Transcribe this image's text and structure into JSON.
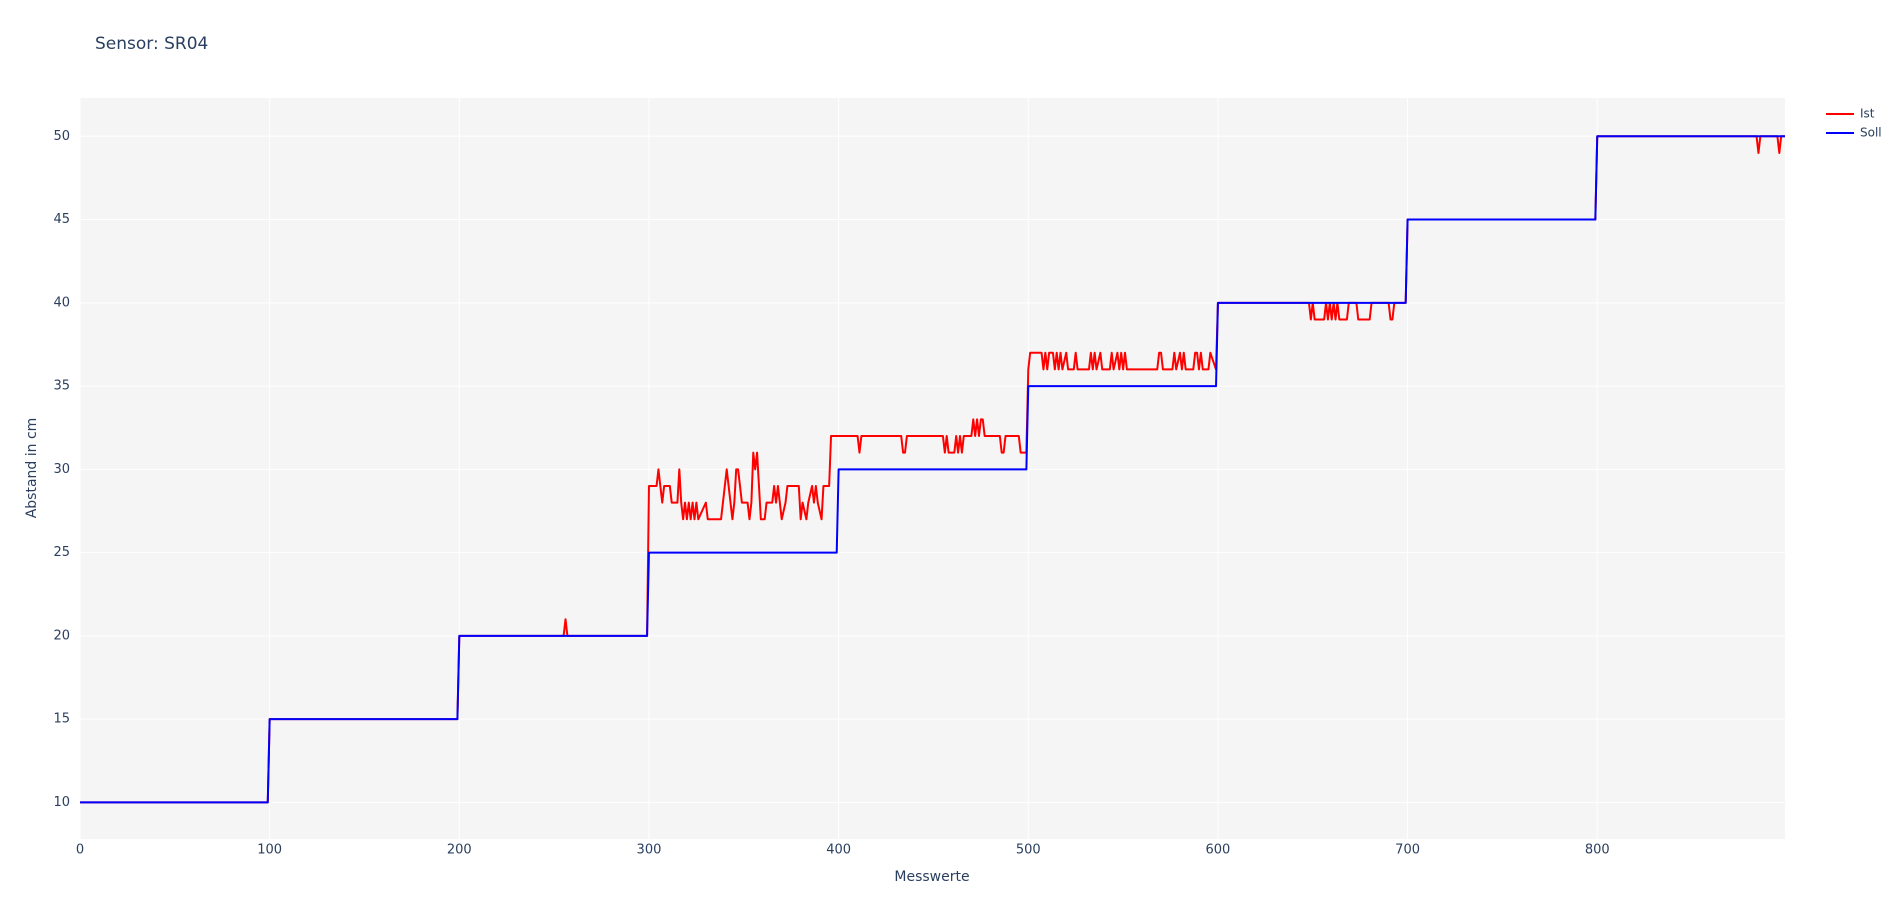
{
  "chart_data": {
    "type": "line",
    "title": "Sensor: SR04",
    "x_label": "Messwerte",
    "y_label": "Abstand in cm",
    "xlim": [
      0,
      899
    ],
    "ylim": [
      7.8,
      52.3
    ],
    "xticks": [
      0,
      100,
      200,
      300,
      400,
      500,
      600,
      700,
      800
    ],
    "yticks": [
      10,
      15,
      20,
      25,
      30,
      35,
      40,
      45,
      50
    ],
    "grid": true,
    "legend": "top-right",
    "series": [
      {
        "name": "Ist",
        "color": "#ff0000",
        "x": [
          0,
          99,
          100,
          199,
          200,
          255,
          256,
          257,
          299,
          300,
          304,
          305,
          306,
          307,
          308,
          311,
          312,
          315,
          316,
          317,
          318,
          319,
          320,
          321,
          322,
          323,
          324,
          325,
          326,
          330,
          331,
          338,
          340,
          341,
          342,
          343,
          344,
          345,
          346,
          347,
          348,
          349,
          352,
          353,
          354,
          355,
          356,
          357,
          358,
          359,
          361,
          362,
          365,
          366,
          367,
          368,
          369,
          370,
          372,
          373,
          379,
          380,
          381,
          383,
          384,
          386,
          387,
          388,
          389,
          391,
          392,
          395,
          396,
          410,
          411,
          412,
          433,
          434,
          435,
          436,
          455,
          456,
          457,
          458,
          461,
          462,
          463,
          464,
          465,
          466,
          470,
          471,
          472,
          473,
          474,
          475,
          476,
          477,
          485,
          486,
          487,
          488,
          495,
          496,
          499,
          500,
          501,
          507,
          508,
          509,
          510,
          511,
          513,
          514,
          515,
          516,
          517,
          518,
          520,
          521,
          524,
          525,
          526,
          532,
          533,
          534,
          535,
          536,
          538,
          539,
          543,
          544,
          545,
          547,
          548,
          549,
          550,
          551,
          552,
          568,
          569,
          570,
          571,
          576,
          577,
          578,
          580,
          581,
          582,
          583,
          587,
          588,
          589,
          590,
          591,
          592,
          595,
          596,
          599,
          600,
          648,
          649,
          650,
          651,
          656,
          657,
          658,
          659,
          660,
          661,
          662,
          663,
          664,
          668,
          669,
          673,
          674,
          680,
          681,
          690,
          691,
          692,
          693,
          699,
          700,
          799,
          800,
          884,
          885,
          886,
          895,
          896,
          897,
          899
        ],
        "values": [
          10,
          10,
          15,
          15,
          20,
          20,
          21,
          20,
          20,
          29,
          29,
          30,
          29,
          28,
          29,
          29,
          28,
          28,
          30,
          28,
          27,
          28,
          27,
          28,
          27,
          28,
          27,
          28,
          27,
          28,
          27,
          27,
          29,
          30,
          29,
          28,
          27,
          28,
          30,
          30,
          29,
          28,
          28,
          27,
          28,
          31,
          30,
          31,
          29,
          27,
          27,
          28,
          28,
          29,
          28,
          29,
          28,
          27,
          28,
          29,
          29,
          27,
          28,
          27,
          28,
          29,
          28,
          29,
          28,
          27,
          29,
          29,
          32,
          32,
          31,
          32,
          32,
          31,
          31,
          32,
          32,
          31,
          32,
          31,
          31,
          32,
          31,
          32,
          31,
          32,
          32,
          33,
          32,
          33,
          32,
          33,
          33,
          32,
          32,
          31,
          31,
          32,
          32,
          31,
          31,
          36,
          37,
          37,
          36,
          37,
          36,
          37,
          37,
          36,
          37,
          36,
          37,
          36,
          37,
          36,
          36,
          37,
          36,
          36,
          37,
          36,
          37,
          36,
          37,
          36,
          36,
          37,
          36,
          37,
          36,
          37,
          36,
          37,
          36,
          36,
          37,
          37,
          36,
          36,
          37,
          36,
          37,
          36,
          37,
          36,
          36,
          37,
          37,
          36,
          37,
          36,
          36,
          37,
          36,
          40,
          40,
          39,
          40,
          39,
          39,
          40,
          39,
          40,
          39,
          40,
          39,
          40,
          39,
          39,
          40,
          40,
          39,
          39,
          40,
          40,
          39,
          39,
          40,
          40,
          45,
          45,
          50,
          50,
          49,
          50,
          50,
          49,
          50,
          50
        ]
      },
      {
        "name": "Soll",
        "color": "#0000ff",
        "x": [
          0,
          99,
          100,
          199,
          200,
          299,
          300,
          399,
          400,
          499,
          500,
          599,
          600,
          699,
          700,
          799,
          800,
          899
        ],
        "values": [
          10,
          10,
          15,
          15,
          20,
          20,
          25,
          25,
          30,
          30,
          35,
          35,
          40,
          40,
          45,
          45,
          50,
          50
        ]
      }
    ]
  }
}
